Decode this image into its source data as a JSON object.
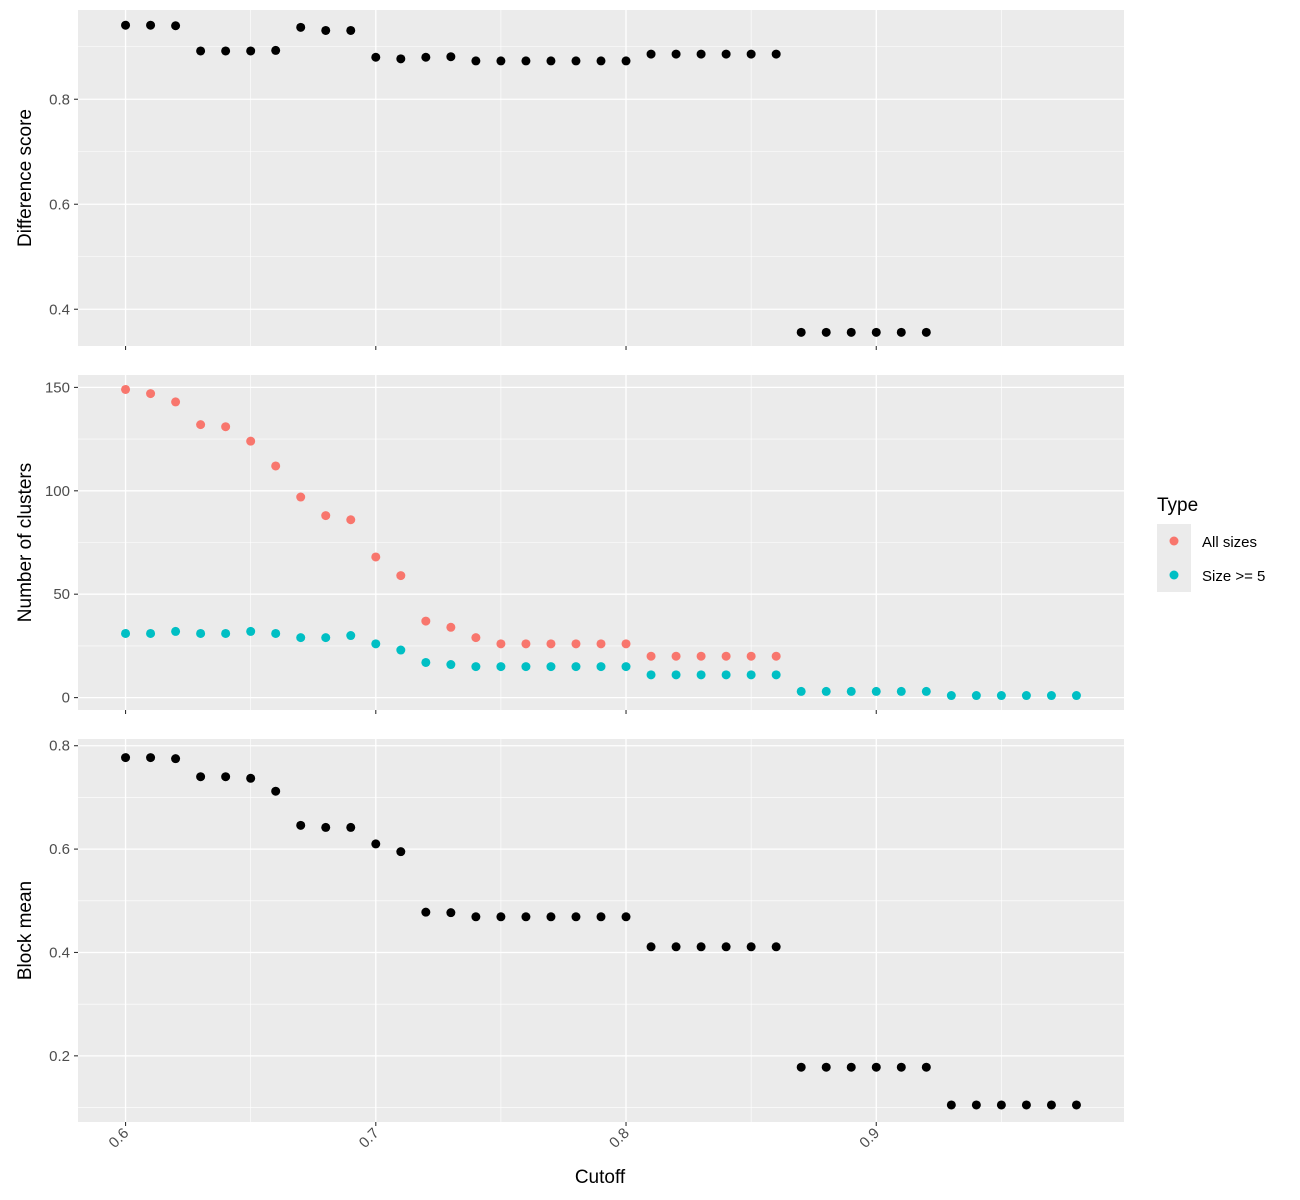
{
  "chart_data": [
    {
      "type": "scatter",
      "ylabel": "Difference score",
      "ylim": [
        0.33,
        0.97
      ],
      "y_major_ticks": [
        0.4,
        0.6,
        0.8
      ],
      "y_minor_ticks": [
        0.5,
        0.7,
        0.9
      ],
      "grid": true,
      "series": [
        {
          "color": "#000000",
          "x": [
            0.6,
            0.61,
            0.62,
            0.63,
            0.64,
            0.65,
            0.66,
            0.67,
            0.68,
            0.69,
            0.7,
            0.71,
            0.72,
            0.73,
            0.74,
            0.75,
            0.76,
            0.77,
            0.78,
            0.79,
            0.8,
            0.81,
            0.82,
            0.83,
            0.84,
            0.85,
            0.86,
            0.87,
            0.88,
            0.89,
            0.9,
            0.91,
            0.92
          ],
          "y": [
            0.941,
            0.941,
            0.94,
            0.892,
            0.892,
            0.892,
            0.893,
            0.937,
            0.931,
            0.931,
            0.88,
            0.877,
            0.88,
            0.881,
            0.873,
            0.873,
            0.873,
            0.873,
            0.873,
            0.873,
            0.873,
            0.886,
            0.886,
            0.886,
            0.886,
            0.886,
            0.886,
            0.356,
            0.356,
            0.356,
            0.356,
            0.356,
            0.356
          ]
        }
      ]
    },
    {
      "type": "scatter",
      "ylabel": "Number of clusters",
      "ylim": [
        -6,
        156
      ],
      "y_major_ticks": [
        0,
        50,
        100,
        150
      ],
      "y_minor_ticks": [
        25,
        75,
        125
      ],
      "grid": true,
      "legend": {
        "title": "Type",
        "placement": "right",
        "entries": [
          {
            "label": "All sizes",
            "color": "#F8766D"
          },
          {
            "label": "Size >= 5",
            "color": "#00BFC4"
          }
        ]
      },
      "series": [
        {
          "name": "All sizes",
          "color": "#F8766D",
          "x": [
            0.6,
            0.61,
            0.62,
            0.63,
            0.64,
            0.65,
            0.66,
            0.67,
            0.68,
            0.69,
            0.7,
            0.71,
            0.72,
            0.73,
            0.74,
            0.75,
            0.76,
            0.77,
            0.78,
            0.79,
            0.8,
            0.81,
            0.82,
            0.83,
            0.84,
            0.85,
            0.86
          ],
          "y": [
            149,
            147,
            143,
            132,
            131,
            124,
            112,
            97,
            88,
            86,
            68,
            59,
            37,
            34,
            29,
            26,
            26,
            26,
            26,
            26,
            26,
            20,
            20,
            20,
            20,
            20,
            20
          ]
        },
        {
          "name": "Size >= 5",
          "color": "#00BFC4",
          "x": [
            0.6,
            0.61,
            0.62,
            0.63,
            0.64,
            0.65,
            0.66,
            0.67,
            0.68,
            0.69,
            0.7,
            0.71,
            0.72,
            0.73,
            0.74,
            0.75,
            0.76,
            0.77,
            0.78,
            0.79,
            0.8,
            0.81,
            0.82,
            0.83,
            0.84,
            0.85,
            0.86,
            0.87,
            0.88,
            0.89,
            0.9,
            0.91,
            0.92,
            0.93,
            0.94,
            0.95,
            0.96,
            0.97,
            0.98
          ],
          "y": [
            31,
            31,
            32,
            31,
            31,
            32,
            31,
            29,
            29,
            30,
            26,
            23,
            17,
            16,
            15,
            15,
            15,
            15,
            15,
            15,
            15,
            11,
            11,
            11,
            11,
            11,
            11,
            3,
            3,
            3,
            3,
            3,
            3,
            1,
            1,
            1,
            1,
            1,
            1
          ]
        }
      ]
    },
    {
      "type": "scatter",
      "ylabel": "Block mean",
      "ylim": [
        0.072,
        0.813
      ],
      "y_major_ticks": [
        0.2,
        0.4,
        0.6,
        0.8
      ],
      "y_minor_ticks": [
        0.1,
        0.3,
        0.5,
        0.7
      ],
      "grid": true,
      "series": [
        {
          "color": "#000000",
          "x": [
            0.6,
            0.61,
            0.62,
            0.63,
            0.64,
            0.65,
            0.66,
            0.67,
            0.68,
            0.69,
            0.7,
            0.71,
            0.72,
            0.73,
            0.74,
            0.75,
            0.76,
            0.77,
            0.78,
            0.79,
            0.8,
            0.81,
            0.82,
            0.83,
            0.84,
            0.85,
            0.86,
            0.87,
            0.88,
            0.89,
            0.9,
            0.91,
            0.92,
            0.93,
            0.94,
            0.95,
            0.96,
            0.97,
            0.98
          ],
          "y": [
            0.777,
            0.777,
            0.775,
            0.74,
            0.74,
            0.737,
            0.712,
            0.646,
            0.642,
            0.642,
            0.61,
            0.595,
            0.478,
            0.477,
            0.469,
            0.469,
            0.469,
            0.469,
            0.469,
            0.469,
            0.469,
            0.411,
            0.411,
            0.411,
            0.411,
            0.411,
            0.411,
            0.178,
            0.178,
            0.178,
            0.178,
            0.178,
            0.178,
            0.105,
            0.105,
            0.105,
            0.105,
            0.105,
            0.105
          ]
        }
      ]
    }
  ],
  "x_axis": {
    "label": "Cutoff",
    "xlim": [
      0.581,
      0.999
    ],
    "major_ticks": [
      0.6,
      0.7,
      0.8,
      0.9
    ],
    "tick_labels": [
      "0.6",
      "0.7",
      "0.8",
      "0.9"
    ],
    "minor_ticks": [
      0.65,
      0.75,
      0.85,
      0.95
    ]
  }
}
